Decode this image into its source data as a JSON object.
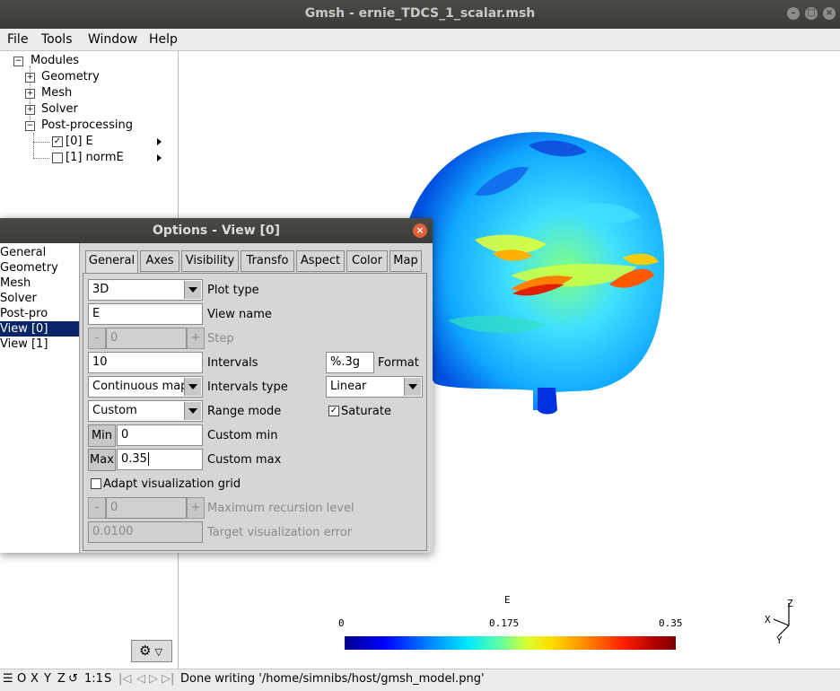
{
  "window": {
    "title": "Gmsh - ernie_TDCS_1_scalar.msh"
  },
  "menubar": {
    "file": "File",
    "tools": "Tools",
    "window": "Window",
    "help": "Help"
  },
  "tree": {
    "modules": "Modules",
    "geometry": "Geometry",
    "mesh": "Mesh",
    "solver": "Solver",
    "postprocessing": "Post-processing",
    "view0": "[0] E",
    "view1": "[1] normE"
  },
  "options": {
    "title": "Options - View [0]",
    "categories": [
      "General",
      "Geometry",
      "Mesh",
      "Solver",
      "Post-pro",
      "View [0]",
      "View [1]"
    ],
    "selected_category": "View [0]",
    "tabs": [
      "General",
      "Axes",
      "Visibility",
      "Transfo",
      "Aspect",
      "Color",
      "Map"
    ],
    "active_tab": "General",
    "plot_type": {
      "value": "3D",
      "label": "Plot type"
    },
    "view_name": {
      "value": "E",
      "label": "View name"
    },
    "step": {
      "value": "0",
      "label": "Step",
      "minus": "-",
      "plus": "+"
    },
    "intervals": {
      "value": "10",
      "label": "Intervals"
    },
    "format": {
      "value": "%.3g",
      "label": "Format"
    },
    "intervals_type": {
      "value": "Continuous map",
      "label": "Intervals type"
    },
    "interp": {
      "value": "Linear"
    },
    "range_mode": {
      "value": "Custom",
      "label": "Range mode"
    },
    "saturate": {
      "label": "Saturate",
      "checked": true
    },
    "custom_min": {
      "button": "Min",
      "value": "0",
      "label": "Custom min"
    },
    "custom_max": {
      "button": "Max",
      "value": "0.35",
      "label": "Custom max"
    },
    "adapt_grid": {
      "label": "Adapt visualization grid",
      "checked": false
    },
    "max_recursion": {
      "value": "0",
      "label": "Maximum recursion level",
      "minus": "-",
      "plus": "+"
    },
    "target_error": {
      "value": "0.0100",
      "label": "Target visualization error"
    }
  },
  "graphics": {
    "colorbar": {
      "title": "E",
      "min": "0",
      "mid": "0.175",
      "max": "0.35"
    },
    "axes": {
      "x": "X",
      "y": "Y",
      "z": "Z"
    }
  },
  "statusbar": {
    "x": "X",
    "y": "Y",
    "z": "Z",
    "scale": "1:1",
    "s": "S",
    "message": "Done writing '/home/simnibs/host/gmsh_model.png'"
  },
  "colors": {
    "selection": "#0a246a",
    "titlebar": "#3c3b37",
    "close": "#e0603c"
  }
}
